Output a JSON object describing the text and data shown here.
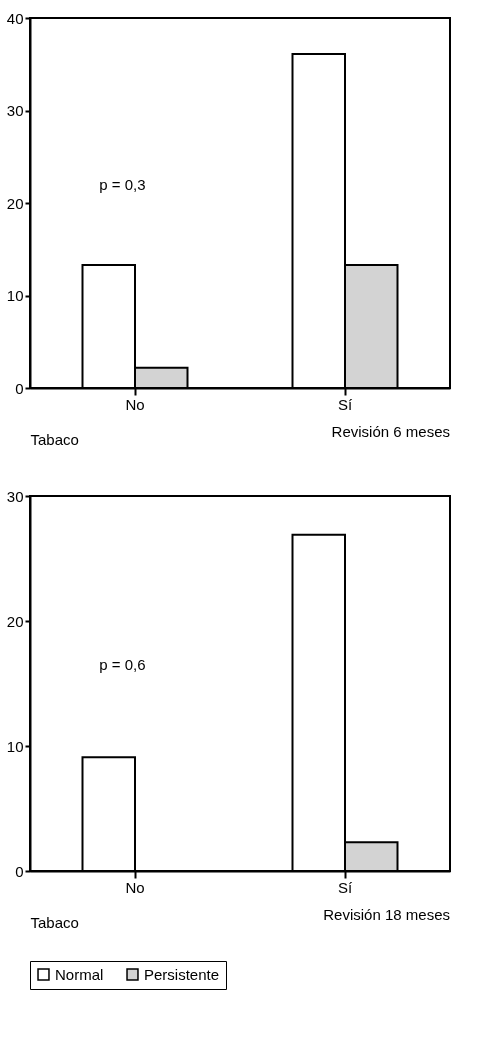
{
  "chart_data": [
    {
      "type": "bar",
      "title": "Revisión 6 meses",
      "xlabel": "Tabaco",
      "categories": [
        "No",
        "Sí"
      ],
      "series": [
        {
          "name": "Normal",
          "color": "#ffffff",
          "values": [
            13.3,
            36.1
          ]
        },
        {
          "name": "Persistente",
          "color": "#d3d3d3",
          "values": [
            2.2,
            13.3
          ]
        }
      ],
      "ylim": [
        0,
        40
      ],
      "yticks": [
        0,
        10,
        20,
        30,
        40
      ],
      "annotations": [
        "p = 0,3"
      ],
      "legend": "bottom"
    },
    {
      "type": "bar",
      "title": "Revisión 18 meses",
      "xlabel": "Tabaco",
      "categories": [
        "No",
        "Sí"
      ],
      "series": [
        {
          "name": "Normal",
          "color": "#ffffff",
          "values": [
            9.1,
            26.9
          ]
        },
        {
          "name": "Persistente",
          "color": "#d3d3d3",
          "values": [
            0,
            2.3
          ]
        }
      ],
      "ylim": [
        0,
        30
      ],
      "yticks": [
        0,
        10,
        20,
        30
      ],
      "annotations": [
        "p = 0,6"
      ],
      "legend": "bottom"
    }
  ]
}
